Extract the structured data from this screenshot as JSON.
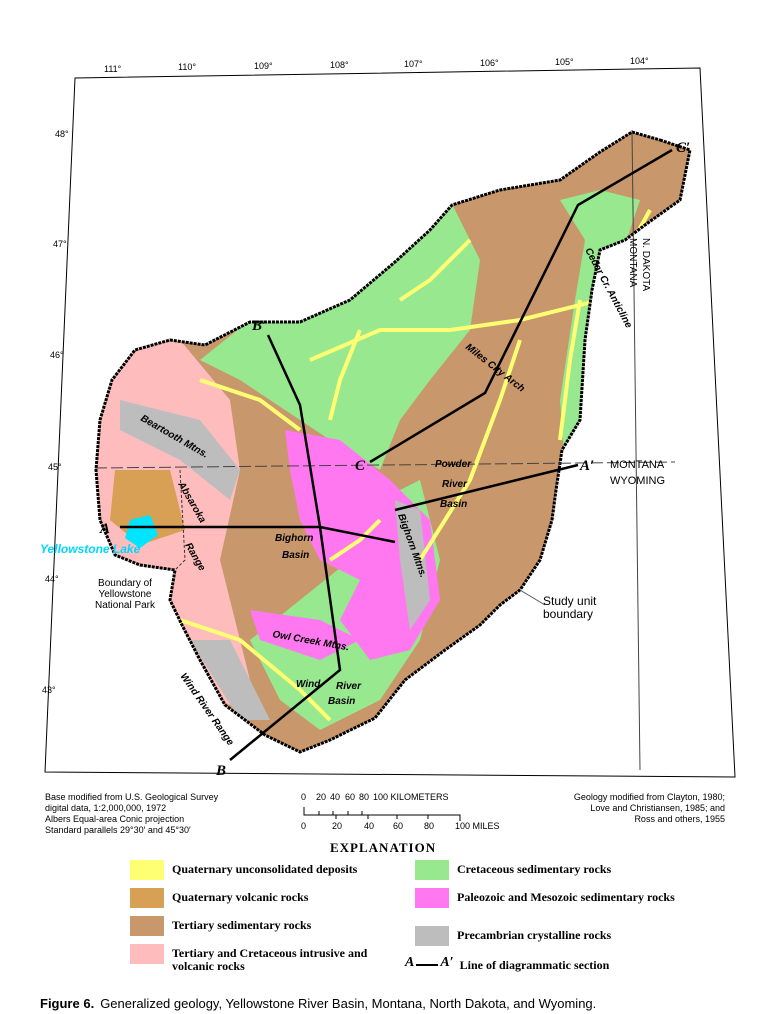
{
  "map": {
    "longitudes": [
      "111°",
      "110°",
      "109°",
      "108°",
      "107°",
      "106°",
      "105°",
      "104°"
    ],
    "latitudes": [
      "48°",
      "47°",
      "46°",
      "45°",
      "44°",
      "43°"
    ],
    "place_labels": {
      "beartooth": "Beartooth Mtns.",
      "absaroka": "Absaroka",
      "range": "Range",
      "yellowstone_lake": "Yellowstone Lake",
      "ys_boundary": "Boundary of Yellowstone National Park",
      "bighorn_basin_1": "Bighorn",
      "bighorn_basin_2": "Basin",
      "bighorn_mtns": "Bighorn Mtns.",
      "owl_creek": "Owl Creek Mtns.",
      "wind": "Wind",
      "river_basin_1": "River",
      "river_basin_2": "Basin",
      "wind_river_range": "Wind River Range",
      "powder": "Powder",
      "powder_river": "River",
      "powder_basin": "Basin",
      "miles_city_arch": "Miles City Arch",
      "cedar_creek": "Cedar Cr. Anticline",
      "study_unit": "Study unit boundary",
      "montana": "MONTANA",
      "wyoming": "WYOMING",
      "n_dakota": "N. DAKOTA",
      "montana_vertical": "MONTANA"
    },
    "section_labels": {
      "A": "A",
      "A_prime": "A′",
      "B": "B",
      "B_prime": "B′",
      "C": "C",
      "C_prime": "C′"
    },
    "colors": {
      "quaternary_unconsolidated": "#ffff73",
      "quaternary_volcanic": "#d8a055",
      "tertiary_sedimentary": "#c8976b",
      "tertiary_cretaceous_intrusive": "#ffbcbc",
      "cretaceous_sedimentary": "#98e890",
      "paleozoic_mesozoic": "#ff78f0",
      "precambrian": "#bdbdbd",
      "lake": "#00e5ff"
    }
  },
  "sources": {
    "base": [
      "Base modified from U.S. Geological Survey",
      "digital data, 1:2,000,000, 1972",
      "Albers Equal-area Conic projection",
      "Standard parallels 29°30′ and 45°30′"
    ],
    "geology": [
      "Geology modified from Clayton, 1980;",
      "Love and Christiansen, 1985; and",
      "Ross and others, 1955"
    ]
  },
  "scale": {
    "km_ticks": [
      "0",
      "20",
      "40",
      "60",
      "80",
      "100 KILOMETERS"
    ],
    "mile_ticks": [
      "0",
      "20",
      "40",
      "60",
      "80",
      "100 MILES"
    ]
  },
  "legend": {
    "title": "EXPLANATION",
    "items": [
      {
        "label": "Quaternary unconsolidated deposits",
        "color": "#ffff73"
      },
      {
        "label": "Quaternary volcanic rocks",
        "color": "#d8a055"
      },
      {
        "label": "Tertiary sedimentary rocks",
        "color": "#c8976b"
      },
      {
        "label": "Tertiary and Cretaceous intrusive and volcanic rocks",
        "color": "#ffbcbc"
      },
      {
        "label": "Cretaceous sedimentary rocks",
        "color": "#98e890"
      },
      {
        "label": "Paleozoic and Mesozoic sedimentary rocks",
        "color": "#ff78f0"
      },
      {
        "label": "Precambrian crystalline rocks",
        "color": "#bdbdbd"
      }
    ],
    "section_line": {
      "a": "A",
      "a_prime": "A′",
      "label": "Line of diagrammatic section"
    }
  },
  "caption": {
    "number": "Figure 6.",
    "text": "Generalized geology, Yellowstone River Basin, Montana, North Dakota, and Wyoming."
  }
}
